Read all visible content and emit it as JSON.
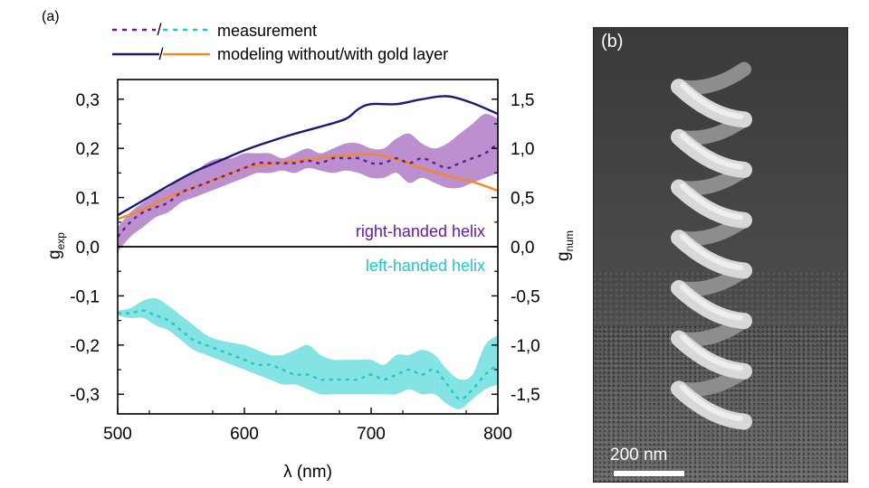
{
  "panel_a_label": "(a)",
  "panel_b_label": "(b)",
  "scale_bar_label": "200 nm",
  "colors": {
    "measurement_right": "#6a1b9a",
    "measurement_left": "#26c6c6",
    "band_right": "#b07cc6",
    "band_left": "#6fdede",
    "model_without_gold": "#1a1a6e",
    "model_with_gold": "#f28a28",
    "zero_line": "#000000"
  },
  "chart_data": {
    "type": "line",
    "xlabel": "λ (nm)",
    "ylabel_left": "g",
    "ylabel_left_sub": "exp",
    "ylabel_right": "g",
    "ylabel_right_sub": "num",
    "xlim": [
      500,
      800
    ],
    "ylim_left": [
      -0.34,
      0.34
    ],
    "ylim_right": [
      -1.7,
      1.7
    ],
    "x_ticks": [
      500,
      600,
      700,
      800
    ],
    "x_tick_labels": [
      "500",
      "600",
      "700",
      "800"
    ],
    "y_left_ticks": [
      0.3,
      0.2,
      0.1,
      0.0,
      -0.1,
      -0.2,
      -0.3
    ],
    "y_left_tick_labels": [
      "0,3",
      "0,2",
      "0,1",
      "0,0",
      "-0,1",
      "-0,2",
      "-0,3"
    ],
    "y_right_ticks": [
      1.5,
      1.0,
      0.5,
      0.0,
      -0.5,
      -1.0,
      -1.5
    ],
    "y_right_tick_labels": [
      "1,5",
      "1,0",
      "0,5",
      "0,0",
      "-0,5",
      "-1,0",
      "-1,5"
    ],
    "legend": {
      "measurement_label": "measurement",
      "modeling_label": "modeling without/with gold layer",
      "slash": "/"
    },
    "annotations": {
      "right_handed": "right-handed helix",
      "left_handed": "left-handed helix"
    },
    "series": [
      {
        "name": "measurement right-handed helix",
        "axis": "left",
        "style": "dotted",
        "x": [
          500,
          510,
          520,
          530,
          540,
          550,
          560,
          570,
          580,
          590,
          600,
          610,
          620,
          630,
          640,
          650,
          660,
          670,
          680,
          690,
          700,
          710,
          720,
          730,
          740,
          750,
          760,
          770,
          780,
          790,
          800
        ],
        "y": [
          0.02,
          0.05,
          0.07,
          0.08,
          0.09,
          0.11,
          0.12,
          0.13,
          0.14,
          0.15,
          0.16,
          0.17,
          0.17,
          0.17,
          0.17,
          0.175,
          0.17,
          0.18,
          0.18,
          0.18,
          0.17,
          0.17,
          0.18,
          0.17,
          0.18,
          0.17,
          0.16,
          0.17,
          0.18,
          0.19,
          0.21
        ],
        "band_low": [
          -0.01,
          0.02,
          0.04,
          0.06,
          0.07,
          0.09,
          0.1,
          0.11,
          0.12,
          0.13,
          0.14,
          0.15,
          0.15,
          0.155,
          0.15,
          0.16,
          0.155,
          0.15,
          0.155,
          0.15,
          0.14,
          0.14,
          0.15,
          0.13,
          0.14,
          0.13,
          0.12,
          0.12,
          0.13,
          0.14,
          0.15
        ],
        "band_high": [
          0.04,
          0.07,
          0.09,
          0.11,
          0.12,
          0.14,
          0.15,
          0.17,
          0.18,
          0.18,
          0.19,
          0.19,
          0.19,
          0.18,
          0.19,
          0.2,
          0.19,
          0.2,
          0.21,
          0.21,
          0.2,
          0.2,
          0.22,
          0.23,
          0.21,
          0.2,
          0.21,
          0.23,
          0.25,
          0.27,
          0.26
        ]
      },
      {
        "name": "measurement left-handed helix",
        "axis": "left",
        "style": "dotted",
        "x": [
          500,
          510,
          520,
          530,
          540,
          550,
          560,
          570,
          580,
          590,
          600,
          610,
          620,
          630,
          640,
          650,
          660,
          670,
          680,
          690,
          700,
          710,
          720,
          730,
          740,
          750,
          760,
          770,
          780,
          790,
          800
        ],
        "y": [
          -0.135,
          -0.135,
          -0.13,
          -0.14,
          -0.15,
          -0.17,
          -0.19,
          -0.2,
          -0.21,
          -0.22,
          -0.23,
          -0.24,
          -0.24,
          -0.25,
          -0.26,
          -0.26,
          -0.27,
          -0.27,
          -0.27,
          -0.27,
          -0.26,
          -0.27,
          -0.26,
          -0.25,
          -0.26,
          -0.25,
          -0.28,
          -0.31,
          -0.29,
          -0.26,
          -0.24
        ],
        "band_low": [
          -0.14,
          -0.145,
          -0.145,
          -0.16,
          -0.17,
          -0.19,
          -0.21,
          -0.22,
          -0.23,
          -0.24,
          -0.25,
          -0.26,
          -0.27,
          -0.28,
          -0.28,
          -0.29,
          -0.3,
          -0.3,
          -0.3,
          -0.3,
          -0.3,
          -0.3,
          -0.3,
          -0.29,
          -0.3,
          -0.3,
          -0.32,
          -0.33,
          -0.31,
          -0.29,
          -0.28
        ],
        "band_high": [
          -0.13,
          -0.125,
          -0.11,
          -0.105,
          -0.12,
          -0.14,
          -0.16,
          -0.18,
          -0.19,
          -0.195,
          -0.2,
          -0.21,
          -0.22,
          -0.22,
          -0.21,
          -0.2,
          -0.22,
          -0.23,
          -0.23,
          -0.23,
          -0.23,
          -0.24,
          -0.22,
          -0.22,
          -0.21,
          -0.22,
          -0.25,
          -0.27,
          -0.26,
          -0.2,
          -0.18
        ]
      },
      {
        "name": "modeling without gold layer",
        "axis": "right",
        "style": "solid",
        "x": [
          500,
          520,
          540,
          560,
          580,
          600,
          620,
          640,
          660,
          680,
          690,
          700,
          720,
          740,
          760,
          780,
          800
        ],
        "y": [
          0.32,
          0.47,
          0.62,
          0.76,
          0.87,
          0.98,
          1.07,
          1.15,
          1.22,
          1.3,
          1.4,
          1.45,
          1.45,
          1.5,
          1.53,
          1.46,
          1.35
        ]
      },
      {
        "name": "modeling with gold layer",
        "axis": "right",
        "style": "solid",
        "x": [
          500,
          520,
          540,
          560,
          580,
          600,
          620,
          640,
          660,
          680,
          700,
          720,
          740,
          760,
          780,
          800
        ],
        "y": [
          0.28,
          0.38,
          0.5,
          0.6,
          0.7,
          0.8,
          0.84,
          0.87,
          0.9,
          0.93,
          0.94,
          0.89,
          0.8,
          0.72,
          0.66,
          0.57
        ]
      }
    ]
  }
}
